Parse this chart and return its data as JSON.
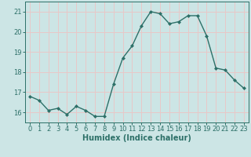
{
  "x": [
    0,
    1,
    2,
    3,
    4,
    5,
    6,
    7,
    8,
    9,
    10,
    11,
    12,
    13,
    14,
    15,
    16,
    17,
    18,
    19,
    20,
    21,
    22,
    23
  ],
  "y": [
    16.8,
    16.6,
    16.1,
    16.2,
    15.9,
    16.3,
    16.1,
    15.8,
    15.8,
    17.4,
    18.7,
    19.3,
    20.3,
    21.0,
    20.9,
    20.4,
    20.5,
    20.8,
    20.8,
    19.8,
    18.2,
    18.1,
    17.6,
    17.2
  ],
  "line_color": "#2d7068",
  "marker": "D",
  "marker_size": 2.0,
  "bg_color": "#cce5e5",
  "grid_color": "#e8c8c8",
  "xlabel": "Humidex (Indice chaleur)",
  "ylabel": "",
  "ylim": [
    15.5,
    21.5
  ],
  "yticks": [
    16,
    17,
    18,
    19,
    20,
    21
  ],
  "xticks": [
    0,
    1,
    2,
    3,
    4,
    5,
    6,
    7,
    8,
    9,
    10,
    11,
    12,
    13,
    14,
    15,
    16,
    17,
    18,
    19,
    20,
    21,
    22,
    23
  ],
  "axis_color": "#2d7068",
  "label_fontsize": 7,
  "tick_fontsize": 6,
  "linewidth": 1.0
}
